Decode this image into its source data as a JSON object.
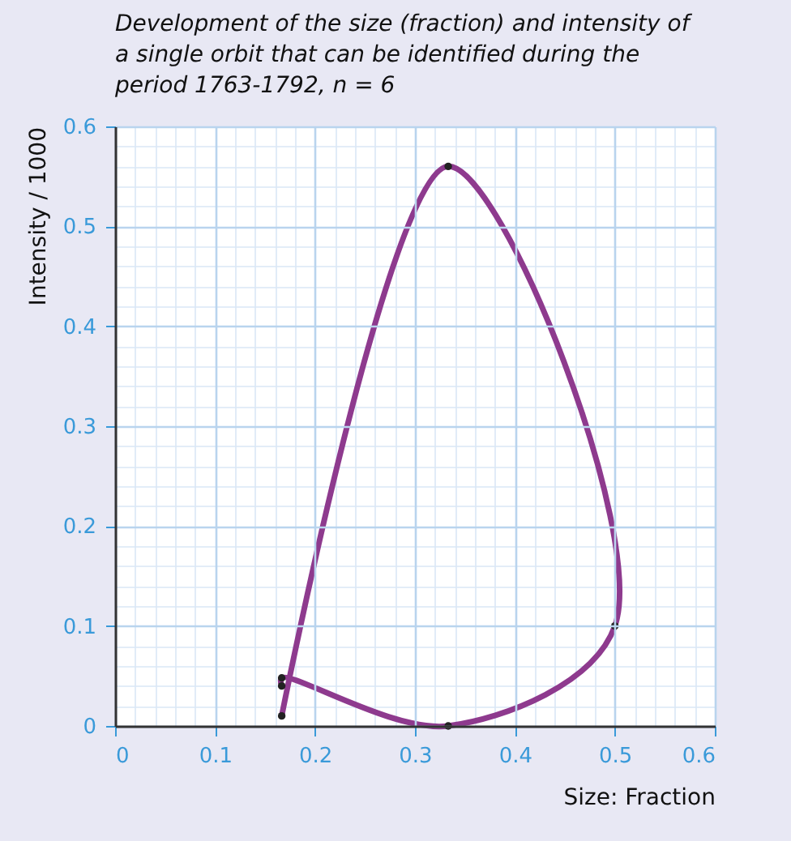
{
  "chart_data": {
    "type": "line",
    "title": "Development of the size (fraction) and intensity of a single orbit that can be identified during the period 1763-1792, n = 6",
    "xlabel": "Size: Fraction",
    "ylabel": "Intensity / 1000",
    "x": [
      0.1667,
      0.3333,
      0.5,
      0.3333,
      0.1667,
      0.1667
    ],
    "series": [
      {
        "color": "#8e3a8e",
        "values": [
          0.01,
          0.56,
          0.1,
          0,
          0.048,
          0.04
        ]
      }
    ],
    "xlim": [
      0,
      0.6
    ],
    "ylim": [
      0,
      0.6
    ],
    "xticks": [
      0,
      0.1,
      0.2,
      0.3,
      0.4,
      0.5,
      0.6
    ],
    "yticks": [
      0,
      0.1,
      0.2,
      0.3,
      0.4,
      0.5,
      0.6
    ],
    "grid": true,
    "marker": "circle",
    "line_style": "solid"
  }
}
